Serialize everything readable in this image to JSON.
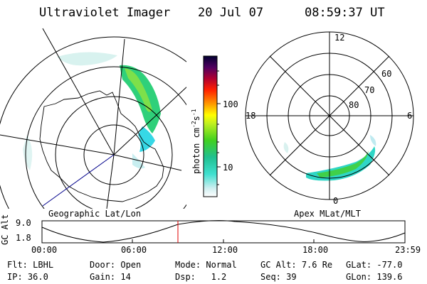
{
  "header": {
    "title": "Ultraviolet Imager",
    "date": "20 Jul 07",
    "time": "08:59:37 UT"
  },
  "colorbar": {
    "unit_main": "photon cm",
    "unit_sup1": "-2",
    "unit_s": "s",
    "unit_sup2": "-1",
    "ticks": [
      "100",
      "10"
    ]
  },
  "geo_panel": {
    "label": "Geographic Lat/Lon"
  },
  "apex_panel": {
    "label": "Apex MLat/MLT",
    "mlt_labels": {
      "top": "12",
      "left": "18",
      "right": "6",
      "bottom": "0"
    },
    "lat_labels": [
      "60",
      "70",
      "80"
    ]
  },
  "timeline": {
    "ylabel": "GC Alt",
    "y_ticks": [
      "9.0",
      "1.8"
    ],
    "x_ticks": [
      "00:00",
      "06:00",
      "12:00",
      "18:00",
      "23:59"
    ]
  },
  "footer": {
    "row1": [
      {
        "label": "Flt:",
        "value": "LBHL"
      },
      {
        "label": "Door:",
        "value": "Open"
      },
      {
        "label": "Mode:",
        "value": "Normal"
      },
      {
        "label": "GC Alt:",
        "value": "7.6 Re"
      },
      {
        "label": "GLat:",
        "value": "-77.0"
      }
    ],
    "row2": [
      {
        "label": "IP:",
        "value": "36.0"
      },
      {
        "label": "Gain:",
        "value": "14"
      },
      {
        "label": "Dsp:",
        "value": "1.2"
      },
      {
        "label": "Seq:",
        "value": "39"
      },
      {
        "label": "GLon:",
        "value": "139.6"
      }
    ]
  }
}
